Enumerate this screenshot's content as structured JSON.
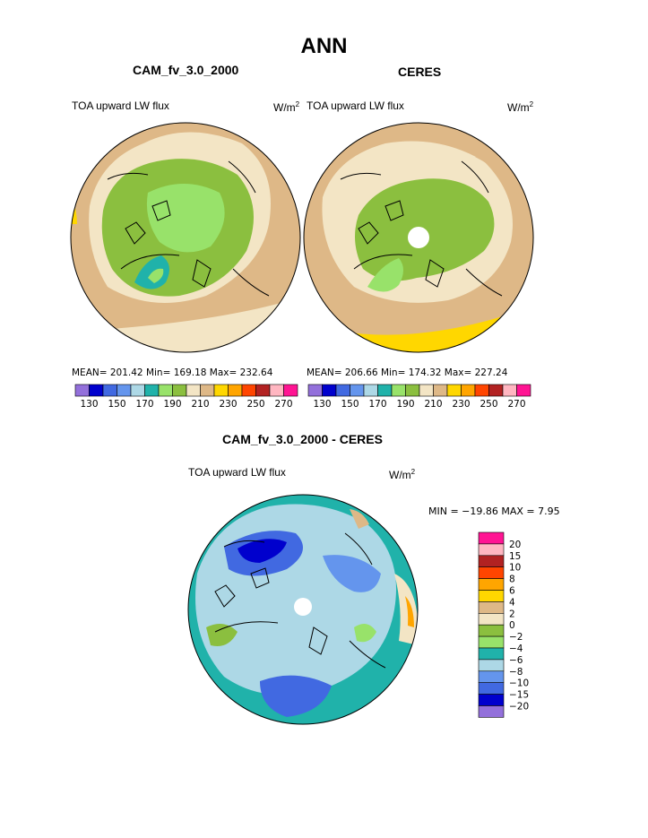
{
  "page_title": "ANN",
  "colors": {
    "abs_scale": [
      "#9370db",
      "#0000cd",
      "#4169e1",
      "#6495ed",
      "#add8e6",
      "#20b2aa",
      "#98e26a",
      "#8bbf3f",
      "#f3e5c5",
      "#deb887",
      "#ffd700",
      "#ffa500",
      "#ff4500",
      "#b22222",
      "#ffb6c1",
      "#ff1493"
    ],
    "diff_scale": [
      "#9370db",
      "#0000cd",
      "#4169e1",
      "#6495ed",
      "#add8e6",
      "#20b2aa",
      "#98e26a",
      "#8bbf3f",
      "#f3e5c5",
      "#deb887",
      "#ffd700",
      "#ffa500",
      "#ff4500",
      "#b22222",
      "#ffb6c1",
      "#ff1493"
    ]
  },
  "panels": {
    "model": {
      "title": "CAM_fv_3.0_2000",
      "var_label": "TOA upward LW flux",
      "units": "W/m",
      "units_exp": "2",
      "stats": "MEAN=  201.42   Min=  169.18   Max=  232.64"
    },
    "obs": {
      "title": "CERES",
      "var_label": "TOA upward LW flux",
      "units": "W/m",
      "units_exp": "2",
      "stats": "MEAN=  206.66   Min=  174.32   Max=  227.24"
    },
    "diff": {
      "title": "CAM_fv_3.0_2000 - CERES",
      "var_label": "TOA upward LW flux",
      "units": "W/m",
      "units_exp": "2",
      "stats": "MIN  =  −19.86  MAX  =     7.95"
    }
  },
  "chart_data": [
    {
      "type": "heatmap",
      "projection": "north-polar-stereographic",
      "title": "CAM_fv_3.0_2000",
      "field": "TOA upward LW flux",
      "units": "W/m2",
      "mean": 201.42,
      "min": 169.18,
      "max": 232.64,
      "colorbar": {
        "levels": [
          130,
          140,
          150,
          160,
          170,
          180,
          190,
          200,
          210,
          220,
          230,
          240,
          250,
          260,
          270
        ],
        "tick_labels": [
          "130",
          "150",
          "170",
          "190",
          "210",
          "230",
          "250",
          "270"
        ],
        "orientation": "horizontal"
      }
    },
    {
      "type": "heatmap",
      "projection": "north-polar-stereographic",
      "title": "CERES",
      "field": "TOA upward LW flux",
      "units": "W/m2",
      "mean": 206.66,
      "min": 174.32,
      "max": 227.24,
      "colorbar": {
        "levels": [
          130,
          140,
          150,
          160,
          170,
          180,
          190,
          200,
          210,
          220,
          230,
          240,
          250,
          260,
          270
        ],
        "tick_labels": [
          "130",
          "150",
          "170",
          "190",
          "210",
          "230",
          "250",
          "270"
        ],
        "orientation": "horizontal"
      }
    },
    {
      "type": "heatmap",
      "projection": "north-polar-stereographic",
      "title": "CAM_fv_3.0_2000 - CERES",
      "field": "TOA upward LW flux",
      "units": "W/m2",
      "min": -19.86,
      "max": 7.95,
      "colorbar": {
        "tick_labels": [
          "20",
          "15",
          "10",
          "8",
          "6",
          "4",
          "2",
          "0",
          "−2",
          "−4",
          "−6",
          "−8",
          "−10",
          "−15",
          "−20"
        ],
        "orientation": "vertical"
      }
    }
  ]
}
